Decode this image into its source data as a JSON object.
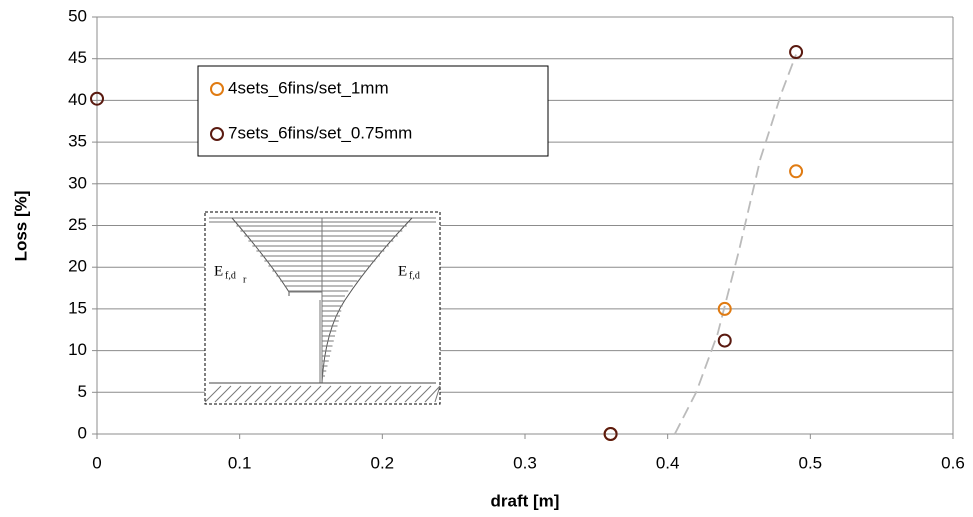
{
  "chart_data": {
    "type": "scatter",
    "x_label": "draft [m]",
    "y_label": "Loss [%]",
    "xlim": [
      0,
      0.6
    ],
    "xticks": [
      0,
      0.1,
      0.2,
      0.3,
      0.4,
      0.5,
      0.6
    ],
    "ylim": [
      0,
      50
    ],
    "yticks": [
      0,
      5,
      10,
      15,
      20,
      25,
      30,
      35,
      40,
      45,
      50
    ],
    "grid": true,
    "legend": "upper left",
    "series": [
      {
        "name": "4sets_6fins/set_1mm",
        "color": "#e07b12",
        "x": [
          0.36,
          0.44,
          0.49
        ],
        "values": [
          0,
          15,
          31.5
        ]
      },
      {
        "name": "7sets_6fins/set_0.75mm",
        "color": "#5a1a10",
        "x": [
          0,
          0.36,
          0.44,
          0.49
        ],
        "values": [
          40.2,
          0,
          11.2,
          45.8
        ]
      }
    ],
    "trendline": {
      "color": "#bbbbbb",
      "x": [
        0.405,
        0.42,
        0.435,
        0.45,
        0.465,
        0.48,
        0.49
      ],
      "values": [
        0,
        5,
        12,
        22,
        33,
        41,
        45.5
      ]
    },
    "inset": {
      "left_label": {
        "main": "E",
        "sub": "f,d",
        "subsub": "r"
      },
      "right_label": {
        "main": "E",
        "sub": "f,d"
      }
    }
  }
}
